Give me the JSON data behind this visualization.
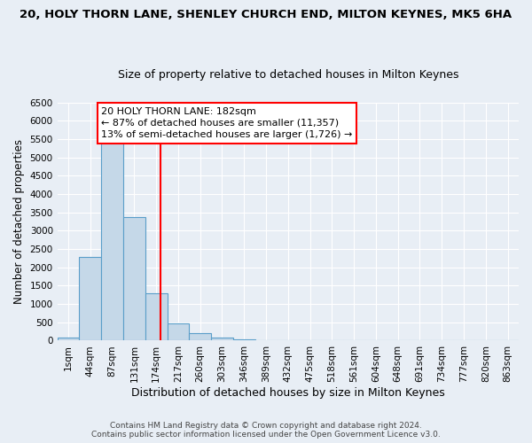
{
  "title1": "20, HOLY THORN LANE, SHENLEY CHURCH END, MILTON KEYNES, MK5 6HA",
  "title2": "Size of property relative to detached houses in Milton Keynes",
  "xlabel": "Distribution of detached houses by size in Milton Keynes",
  "ylabel": "Number of detached properties",
  "footer1": "Contains HM Land Registry data © Crown copyright and database right 2024.",
  "footer2": "Contains public sector information licensed under the Open Government Licence v3.0.",
  "bar_labels": [
    "1sqm",
    "44sqm",
    "87sqm",
    "131sqm",
    "174sqm",
    "217sqm",
    "260sqm",
    "303sqm",
    "346sqm",
    "389sqm",
    "432sqm",
    "475sqm",
    "518sqm",
    "561sqm",
    "604sqm",
    "648sqm",
    "691sqm",
    "734sqm",
    "777sqm",
    "820sqm",
    "863sqm"
  ],
  "bar_values": [
    75,
    2280,
    5420,
    3380,
    1300,
    470,
    210,
    90,
    45,
    10,
    5,
    0,
    0,
    0,
    0,
    0,
    0,
    0,
    0,
    0,
    0
  ],
  "bar_color": "#c5d8e8",
  "bar_edge_color": "#5a9ec9",
  "bg_color": "#e8eef5",
  "grid_color": "#ffffff",
  "ylim": [
    0,
    6500
  ],
  "yticks": [
    0,
    500,
    1000,
    1500,
    2000,
    2500,
    3000,
    3500,
    4000,
    4500,
    5000,
    5500,
    6000,
    6500
  ],
  "red_line_x": 4.18,
  "annotation_text_line1": "20 HOLY THORN LANE: 182sqm",
  "annotation_text_line2": "← 87% of detached houses are smaller (11,357)",
  "annotation_text_line3": "13% of semi-detached houses are larger (1,726) →",
  "title1_fontsize": 9.5,
  "title2_fontsize": 9,
  "xlabel_fontsize": 9,
  "ylabel_fontsize": 8.5,
  "tick_fontsize": 7.5,
  "annotation_fontsize": 8,
  "footer_fontsize": 6.5
}
